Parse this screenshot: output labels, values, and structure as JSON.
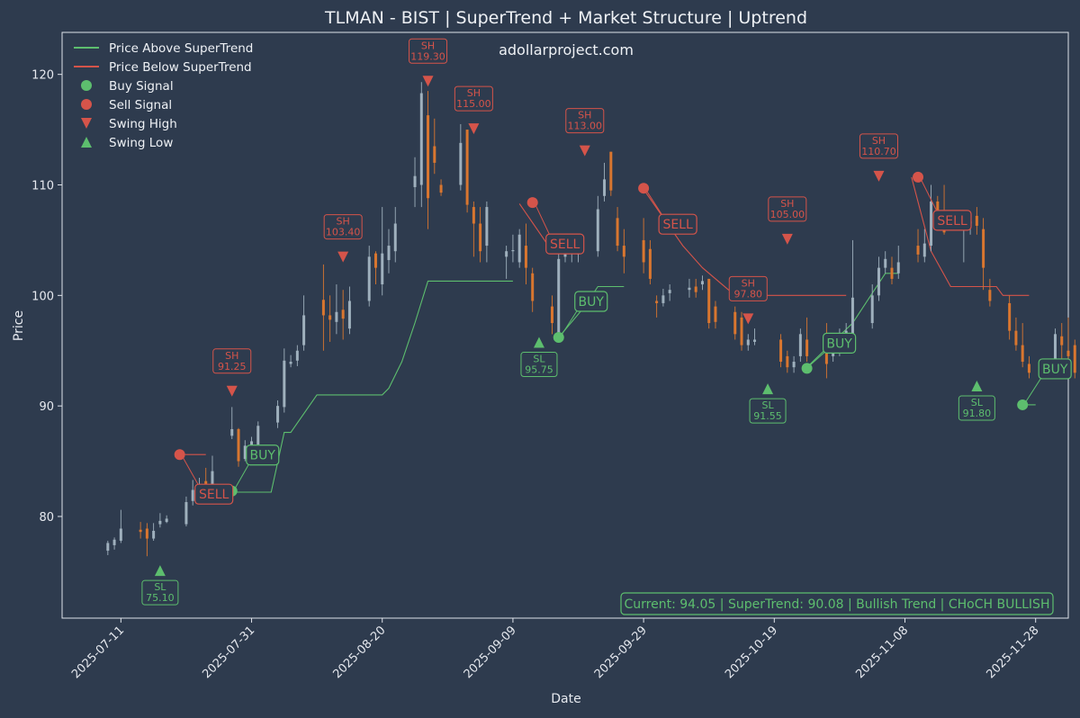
{
  "chart_data": {
    "type": "candlestick",
    "title": "TLMAN - BIST | SuperTrend + Market Structure | Uptrend",
    "watermark": "adollarproject.com",
    "xlabel": "Date",
    "ylabel": "Price",
    "ylim": [
      70.8,
      123.8
    ],
    "xlim": [
      "2025-07-02",
      "2025-12-03"
    ],
    "x_ticks": [
      "2025-07-11",
      "2025-07-31",
      "2025-08-20",
      "2025-09-09",
      "2025-09-29",
      "2025-10-19",
      "2025-11-08",
      "2025-11-28"
    ],
    "y_ticks": [
      80,
      90,
      100,
      110,
      120
    ],
    "colors": {
      "background": "#2e3b4e",
      "up_candle": "#9fb0bd",
      "down_candle": "#d9762f",
      "bullish": "#5dbe6e",
      "bearish": "#d5544a",
      "text": "#e6e9ef"
    },
    "legend": {
      "placement": "upper-left",
      "items": [
        {
          "label": "Price Above SuperTrend",
          "marker": "line",
          "color": "#5dbe6e"
        },
        {
          "label": "Price Below SuperTrend",
          "marker": "line",
          "color": "#d5544a"
        },
        {
          "label": "Buy Signal",
          "marker": "circle",
          "color": "#5dbe6e"
        },
        {
          "label": "Sell Signal",
          "marker": "circle",
          "color": "#d5544a"
        },
        {
          "label": "Swing High",
          "marker": "triangle-down",
          "color": "#d5544a"
        },
        {
          "label": "Swing Low",
          "marker": "triangle-up",
          "color": "#5dbe6e"
        }
      ]
    },
    "candles": [
      [
        "2025-07-09",
        76.9,
        77.6,
        76.5,
        77.8
      ],
      [
        "2025-07-10",
        77.4,
        77.9,
        77.0,
        78.1
      ],
      [
        "2025-07-11",
        77.8,
        78.9,
        77.6,
        80.6
      ],
      [
        "2025-07-14",
        78.8,
        78.6,
        78.0,
        79.5
      ],
      [
        "2025-07-15",
        78.9,
        78.0,
        76.4,
        79.4
      ],
      [
        "2025-07-16",
        78.0,
        78.7,
        77.8,
        79.4
      ],
      [
        "2025-07-17",
        79.3,
        79.6,
        79.0,
        80.3
      ],
      [
        "2025-07-18",
        79.5,
        79.8,
        79.4,
        80.1
      ],
      [
        "2025-07-21",
        79.3,
        81.3,
        79.1,
        81.8
      ],
      [
        "2025-07-22",
        81.4,
        82.4,
        81.0,
        83.3
      ],
      [
        "2025-07-23",
        82.0,
        82.5,
        81.8,
        83.5
      ],
      [
        "2025-07-24",
        83.2,
        82.6,
        81.6,
        84.4
      ],
      [
        "2025-07-25",
        82.7,
        84.1,
        82.6,
        85.5
      ],
      [
        "2025-07-28",
        87.3,
        87.9,
        87.0,
        89.9
      ],
      [
        "2025-07-29",
        87.9,
        85.0,
        84.5,
        88.0
      ],
      [
        "2025-07-30",
        85.2,
        86.4,
        85.0,
        86.9
      ],
      [
        "2025-07-31",
        85.9,
        86.8,
        85.6,
        87.2
      ],
      [
        "2025-08-01",
        86.5,
        88.2,
        86.0,
        88.6
      ],
      [
        "2025-08-04",
        88.5,
        90.0,
        88.0,
        90.5
      ],
      [
        "2025-08-05",
        89.9,
        94.1,
        89.4,
        95.2
      ],
      [
        "2025-08-06",
        93.8,
        94.0,
        93.5,
        94.6
      ],
      [
        "2025-08-07",
        94.1,
        95.0,
        93.6,
        95.5
      ],
      [
        "2025-08-08",
        95.5,
        98.2,
        95.0,
        100.0
      ],
      [
        "2025-08-11",
        99.6,
        98.2,
        95.0,
        102.8
      ],
      [
        "2025-08-12",
        98.2,
        97.8,
        95.8,
        100.0
      ],
      [
        "2025-08-13",
        97.6,
        98.5,
        96.5,
        101.0
      ],
      [
        "2025-08-14",
        98.7,
        97.9,
        96.0,
        100.5
      ],
      [
        "2025-08-15",
        97.0,
        99.5,
        96.5,
        100.8
      ],
      [
        "2025-08-18",
        99.5,
        103.5,
        99.0,
        104.5
      ],
      [
        "2025-08-19",
        103.8,
        102.5,
        101.0,
        104.0
      ],
      [
        "2025-08-20",
        101.0,
        103.8,
        100.0,
        108.0
      ],
      [
        "2025-08-21",
        103.2,
        104.5,
        102.0,
        106.0
      ],
      [
        "2025-08-22",
        104.0,
        106.5,
        103.0,
        108.0
      ],
      [
        "2025-08-25",
        109.8,
        110.8,
        108.0,
        112.5
      ],
      [
        "2025-08-26",
        110.0,
        118.3,
        108.0,
        119.3
      ],
      [
        "2025-08-27",
        116.3,
        108.8,
        106.0,
        118.5
      ],
      [
        "2025-08-28",
        113.5,
        112.0,
        111.0,
        116.0
      ],
      [
        "2025-08-29",
        110.0,
        109.3,
        109.0,
        110.5
      ],
      [
        "2025-09-01",
        110.0,
        113.8,
        109.5,
        115.5
      ],
      [
        "2025-09-02",
        115.0,
        108.2,
        107.5,
        115.0
      ],
      [
        "2025-09-03",
        108.0,
        106.5,
        103.5,
        108.5
      ],
      [
        "2025-09-04",
        106.5,
        104.0,
        103.0,
        108.0
      ],
      [
        "2025-09-05",
        104.5,
        108.0,
        103.0,
        108.5
      ],
      [
        "2025-09-08",
        103.5,
        104.0,
        101.5,
        104.5
      ],
      [
        "2025-09-09",
        104.0,
        104.1,
        103.0,
        105.5
      ],
      [
        "2025-09-10",
        103.0,
        105.5,
        102.5,
        106.0
      ],
      [
        "2025-09-11",
        104.5,
        102.5,
        101.0,
        106.5
      ],
      [
        "2025-09-12",
        102.0,
        99.5,
        98.5,
        102.5
      ],
      [
        "2025-09-15",
        99.0,
        97.5,
        96.5,
        100.0
      ],
      [
        "2025-09-16",
        96.5,
        103.3,
        96.0,
        104.0
      ],
      [
        "2025-09-17",
        103.5,
        104.0,
        103.0,
        105.0
      ],
      [
        "2025-09-18",
        103.8,
        104.5,
        103.0,
        105.5
      ],
      [
        "2025-09-19",
        103.8,
        103.8,
        103.0,
        105.0
      ],
      [
        "2025-09-22",
        104.0,
        107.8,
        103.5,
        109.0
      ],
      [
        "2025-09-23",
        109.0,
        110.5,
        108.5,
        112.0
      ],
      [
        "2025-09-24",
        113.0,
        109.5,
        109.0,
        113.0
      ],
      [
        "2025-09-25",
        107.0,
        104.5,
        104.0,
        108.0
      ],
      [
        "2025-09-26",
        104.5,
        103.5,
        102.0,
        106.0
      ],
      [
        "2025-09-29",
        105.0,
        103.0,
        102.0,
        107.0
      ],
      [
        "2025-09-30",
        104.2,
        101.5,
        101.0,
        105.0
      ],
      [
        "2025-10-01",
        99.5,
        99.3,
        98.0,
        100.0
      ],
      [
        "2025-10-02",
        99.3,
        100.0,
        99.0,
        100.6
      ],
      [
        "2025-10-03",
        100.2,
        100.5,
        99.5,
        101.0
      ],
      [
        "2025-10-06",
        100.5,
        100.7,
        99.8,
        101.5
      ],
      [
        "2025-10-07",
        100.8,
        100.3,
        99.8,
        101.5
      ],
      [
        "2025-10-08",
        101.0,
        101.3,
        100.5,
        101.8
      ],
      [
        "2025-10-09",
        101.5,
        97.5,
        97.0,
        101.5
      ],
      [
        "2025-10-10",
        99.0,
        97.6,
        97.0,
        99.5
      ],
      [
        "2025-10-13",
        98.5,
        96.5,
        96.0,
        99.0
      ],
      [
        "2025-10-14",
        98.0,
        95.5,
        95.0,
        98.5
      ],
      [
        "2025-10-15",
        95.5,
        96.0,
        95.0,
        96.5
      ],
      [
        "2025-10-16",
        95.8,
        96.0,
        95.5,
        97.0
      ],
      [
        "2025-10-20",
        96.0,
        94.0,
        93.5,
        96.5
      ],
      [
        "2025-10-21",
        94.5,
        93.5,
        93.0,
        95.0
      ],
      [
        "2025-10-22",
        93.5,
        94.0,
        93.0,
        94.5
      ],
      [
        "2025-10-23",
        94.5,
        96.5,
        94.0,
        97.0
      ],
      [
        "2025-10-24",
        96.0,
        94.5,
        94.0,
        98.0
      ],
      [
        "2025-10-27",
        95.0,
        93.8,
        92.5,
        97.5
      ],
      [
        "2025-10-28",
        94.5,
        95.5,
        94.0,
        96.0
      ],
      [
        "2025-10-29",
        94.8,
        96.2,
        94.5,
        97.0
      ],
      [
        "2025-10-30",
        96.5,
        96.8,
        96.0,
        97.5
      ],
      [
        "2025-10-31",
        96.5,
        99.8,
        95.5,
        105.0
      ],
      [
        "2025-11-03",
        97.5,
        100.0,
        97.0,
        101.0
      ],
      [
        "2025-11-04",
        100.0,
        102.5,
        99.5,
        103.5
      ],
      [
        "2025-11-05",
        102.5,
        103.3,
        102.0,
        104.0
      ],
      [
        "2025-11-06",
        102.5,
        101.5,
        101.0,
        103.5
      ],
      [
        "2025-11-07",
        102.0,
        103.0,
        101.5,
        104.5
      ],
      [
        "2025-11-10",
        104.5,
        103.7,
        103.0,
        106.0
      ],
      [
        "2025-11-11",
        103.5,
        104.7,
        103.0,
        106.0
      ],
      [
        "2025-11-12",
        104.5,
        108.5,
        104.0,
        110.0
      ],
      [
        "2025-11-13",
        108.5,
        107.0,
        106.5,
        109.0
      ],
      [
        "2025-11-14",
        107.5,
        105.7,
        105.5,
        110.0
      ],
      [
        "2025-11-17",
        106.0,
        106.3,
        103.0,
        107.0
      ],
      [
        "2025-11-18",
        106.5,
        106.7,
        105.5,
        107.5
      ],
      [
        "2025-11-19",
        107.2,
        106.3,
        105.5,
        108.0
      ],
      [
        "2025-11-20",
        106.0,
        102.5,
        100.5,
        107.0
      ],
      [
        "2025-11-21",
        100.5,
        99.5,
        99.0,
        101.5
      ],
      [
        "2025-11-24",
        99.3,
        96.8,
        96.0,
        100.0
      ],
      [
        "2025-11-25",
        96.8,
        95.5,
        95.0,
        98.0
      ],
      [
        "2025-11-26",
        95.5,
        94.0,
        93.5,
        97.5
      ],
      [
        "2025-11-27",
        93.8,
        93.0,
        92.5,
        94.5
      ],
      [
        "2025-12-01",
        93.5,
        96.5,
        93.0,
        97.0
      ],
      [
        "2025-12-02",
        96.3,
        95.5,
        94.0,
        97.5
      ],
      [
        "2025-12-03",
        95.0,
        94.5,
        93.5,
        98.0
      ],
      [
        "2025-12-04",
        95.5,
        93.0,
        92.5,
        96.0
      ],
      [
        "2025-12-05",
        93.5,
        93.3,
        92.5,
        94.0
      ],
      [
        "2025-12-08",
        94.0,
        95.0,
        93.5,
        96.0
      ],
      [
        "2025-12-09",
        95.0,
        101.5,
        95.0,
        104.5
      ],
      [
        "2025-12-10",
        99.0,
        95.3,
        95.0,
        99.5
      ],
      [
        "2025-12-11",
        95.5,
        94.0,
        93.5,
        96.0
      ]
    ],
    "supertrend_segments": [
      {
        "trend": "bearish",
        "points": [
          [
            "2025-07-20",
            85.6
          ],
          [
            "2025-07-24",
            85.6
          ]
        ]
      },
      {
        "trend": "bullish",
        "points": [
          [
            "2025-07-27",
            82.2
          ],
          [
            "2025-08-03",
            82.2
          ],
          [
            "2025-08-05",
            87.6
          ],
          [
            "2025-08-06",
            87.6
          ],
          [
            "2025-08-10",
            91.0
          ],
          [
            "2025-08-17",
            91.0
          ],
          [
            "2025-08-20",
            91.0
          ],
          [
            "2025-08-21",
            91.6
          ],
          [
            "2025-08-23",
            94.0
          ],
          [
            "2025-08-25",
            97.5
          ],
          [
            "2025-08-27",
            101.3
          ],
          [
            "2025-09-09",
            101.3
          ]
        ]
      },
      {
        "trend": "bearish",
        "points": [
          [
            "2025-09-10",
            108.3
          ],
          [
            "2025-09-15",
            104.0
          ]
        ]
      },
      {
        "trend": "bullish",
        "points": [
          [
            "2025-09-16",
            96.2
          ],
          [
            "2025-09-20",
            99.0
          ],
          [
            "2025-09-22",
            100.8
          ],
          [
            "2025-09-26",
            100.8
          ]
        ]
      },
      {
        "trend": "bearish",
        "points": [
          [
            "2025-09-29",
            109.6
          ],
          [
            "2025-10-05",
            104.5
          ],
          [
            "2025-10-08",
            102.5
          ],
          [
            "2025-10-12",
            100.5
          ],
          [
            "2025-10-16",
            100.0
          ],
          [
            "2025-10-30",
            100.0
          ]
        ]
      },
      {
        "trend": "bullish",
        "points": [
          [
            "2025-10-24",
            93.5
          ],
          [
            "2025-10-31",
            97.5
          ],
          [
            "2025-11-05",
            102.0
          ],
          [
            "2025-11-07",
            102.0
          ]
        ]
      },
      {
        "trend": "bearish",
        "points": [
          [
            "2025-11-09",
            110.7
          ],
          [
            "2025-11-12",
            104.0
          ],
          [
            "2025-11-15",
            100.8
          ],
          [
            "2025-11-22",
            100.8
          ],
          [
            "2025-11-23",
            100.0
          ],
          [
            "2025-11-27",
            100.0
          ]
        ]
      },
      {
        "trend": "bullish",
        "points": [
          [
            "2025-11-26",
            90.1
          ],
          [
            "2025-11-28",
            90.1
          ]
        ]
      }
    ],
    "buy_signals": [
      {
        "date": "2025-07-28",
        "price": 82.3,
        "label": "BUY"
      },
      {
        "date": "2025-09-16",
        "price": 96.2,
        "label": "BUY"
      },
      {
        "date": "2025-10-24",
        "price": 93.4,
        "label": "BUY"
      },
      {
        "date": "2025-11-26",
        "price": 90.1,
        "label": "BUY"
      }
    ],
    "sell_signals": [
      {
        "date": "2025-07-20",
        "price": 85.6,
        "label": "SELL"
      },
      {
        "date": "2025-09-12",
        "price": 108.4,
        "label": "SELL"
      },
      {
        "date": "2025-09-29",
        "price": 109.7,
        "label": "SELL"
      },
      {
        "date": "2025-11-10",
        "price": 110.7,
        "label": "SELL"
      }
    ],
    "swing_highs": [
      {
        "date": "2025-07-28",
        "price": 91.25,
        "label": "SH",
        "value": "91.25"
      },
      {
        "date": "2025-08-14",
        "price": 103.4,
        "label": "SH",
        "value": "103.40"
      },
      {
        "date": "2025-08-27",
        "price": 119.3,
        "label": "SH",
        "value": "119.30"
      },
      {
        "date": "2025-09-03",
        "price": 115.0,
        "label": "SH",
        "value": "115.00"
      },
      {
        "date": "2025-09-20",
        "price": 113.0,
        "label": "SH",
        "value": "113.00"
      },
      {
        "date": "2025-10-15",
        "price": 97.8,
        "label": "SH",
        "value": "97.80"
      },
      {
        "date": "2025-10-21",
        "price": 105.0,
        "label": "SH",
        "value": "105.00"
      },
      {
        "date": "2025-11-04",
        "price": 110.7,
        "label": "SH",
        "value": "110.70"
      }
    ],
    "swing_lows": [
      {
        "date": "2025-07-17",
        "price": 75.1,
        "label": "SL",
        "value": "75.10"
      },
      {
        "date": "2025-09-13",
        "price": 95.75,
        "label": "SL",
        "value": "95.75"
      },
      {
        "date": "2025-10-18",
        "price": 91.55,
        "label": "SL",
        "value": "91.55"
      },
      {
        "date": "2025-11-19",
        "price": 91.8,
        "label": "SL",
        "value": "91.80"
      }
    ],
    "status_box": {
      "text": "Current: 94.05 | SuperTrend: 90.08 | Bullish Trend | CHoCH BULLISH",
      "placement": "bottom-right"
    }
  }
}
